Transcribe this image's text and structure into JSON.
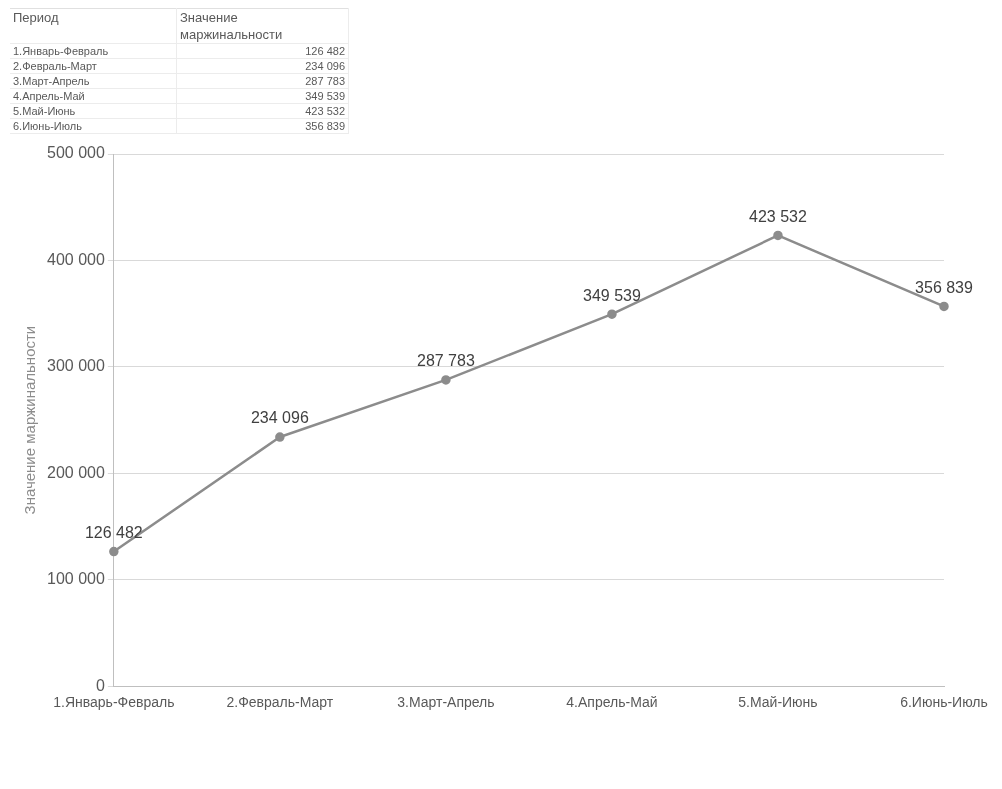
{
  "chart_data": {
    "type": "line",
    "ylabel": "Значение маржинальности",
    "annotations": [
      "Период"
    ],
    "categories": [
      "1.Январь-Февраль",
      "2.Февраль-Март",
      "3.Март-Апрель",
      "4.Апрель-Май",
      "5.Май-Июнь",
      "6.Июнь-Июль"
    ],
    "series": [
      {
        "color": "#8c8c8c",
        "values": [
          126482,
          234096,
          287783,
          349539,
          423532,
          356839
        ],
        "value_labels": [
          "126 482",
          "234 096",
          "287 783",
          "349 539",
          "423 532",
          "356 839"
        ]
      }
    ],
    "ylim": [
      0,
      500000
    ],
    "yticks": [
      {
        "value": 0,
        "label": "0"
      },
      {
        "value": 100000,
        "label": "100 000"
      },
      {
        "value": 200000,
        "label": "200 000"
      },
      {
        "value": 300000,
        "label": "300 000"
      },
      {
        "value": 400000,
        "label": "400 000"
      },
      {
        "value": 500000,
        "label": "500 000"
      }
    ],
    "grid": "y",
    "marker": "circle",
    "line_style": "solid",
    "legend": false
  }
}
